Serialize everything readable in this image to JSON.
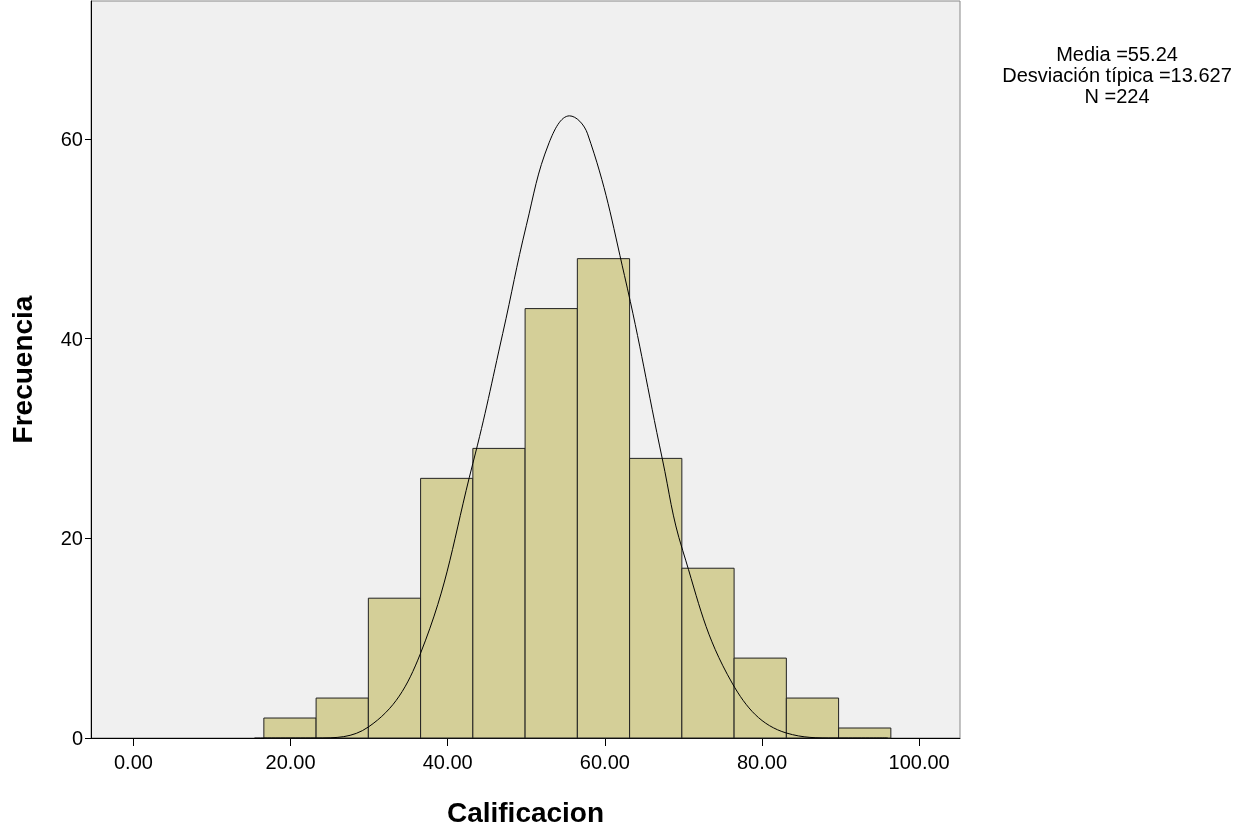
{
  "chart_data": {
    "type": "histogram",
    "xlabel": "Calificacion",
    "ylabel": "Frecuencia",
    "bins": [
      16.6,
      23.25,
      29.9,
      36.55,
      43.2,
      49.85,
      56.5,
      63.15,
      69.8,
      76.45,
      83.1,
      89.75,
      96.4
    ],
    "values": [
      2,
      4,
      14,
      26,
      29,
      43,
      48,
      28,
      17,
      8,
      4,
      1
    ],
    "color": "#d4cf98",
    "series": [
      {
        "type": "line",
        "color": "#000000",
        "marker": "none",
        "x": [
          15.4,
          23.1,
          29.9,
          36.5,
          43.2,
          47.0,
          50.0,
          52.9,
          55.5,
          57.8,
          62.5,
          67.3,
          69.9,
          76.2,
          83.1,
          89.4,
          96.0
        ],
        "values": [
          0,
          0,
          1.1,
          8.4,
          27.5,
          40.5,
          51.3,
          59.6,
          62.3,
          60.5,
          46.3,
          28,
          18.8,
          5.5,
          0.5,
          0,
          0
        ]
      }
    ],
    "xlim": [
      -5.4,
      105.2
    ],
    "ylim": [
      0,
      73.8
    ],
    "xticks": [
      {
        "value": 0,
        "label": "0.00"
      },
      {
        "value": 20,
        "label": "20.00"
      },
      {
        "value": 40,
        "label": "40.00"
      },
      {
        "value": 60,
        "label": "60.00"
      },
      {
        "value": 80,
        "label": "80.00"
      },
      {
        "value": 100,
        "label": "100.00"
      }
    ],
    "yticks": [
      0,
      20,
      40,
      60
    ],
    "grid": false,
    "annotations": [
      "Media =55.24",
      "Desviación típica =13.627",
      "N =224"
    ]
  }
}
